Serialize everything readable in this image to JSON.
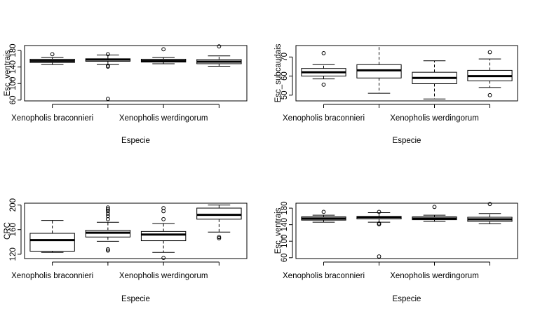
{
  "chart_data": [
    {
      "type": "boxplot",
      "xlabel": "Especie",
      "ylabel": "Esc_ventrais",
      "ylim": [
        58,
        192
      ],
      "yticks": [
        60,
        100,
        140,
        180
      ],
      "xtick_labels": [
        "Xenopholis braconnieri",
        "",
        "Xenopholis werdingorum",
        ""
      ],
      "boxes": [
        {
          "group": 1,
          "whisker_low": 146,
          "q1": 151,
          "median": 155,
          "q3": 159,
          "whisker_high": 163,
          "outliers": [
            171
          ]
        },
        {
          "group": 2,
          "whisker_low": 146,
          "q1": 154,
          "median": 158,
          "q3": 160,
          "whisker_high": 169,
          "outliers": [
            141,
            143,
            171,
            63
          ]
        },
        {
          "group": 3,
          "whisker_low": 148,
          "q1": 152,
          "median": 155,
          "q3": 159,
          "whisker_high": 163,
          "outliers": [
            183
          ]
        },
        {
          "group": 4,
          "whisker_low": 142,
          "q1": 148,
          "median": 153,
          "q3": 158,
          "whisker_high": 167,
          "outliers": [
            190
          ]
        }
      ]
    },
    {
      "type": "boxplot",
      "xlabel": "Especie",
      "ylabel": "Esc_subcaudais",
      "ylim": [
        47,
        76
      ],
      "yticks": [
        50,
        60,
        70
      ],
      "xtick_labels": [
        "Xenopholis braconnieri",
        "",
        "Xenopholis werdingorum",
        ""
      ],
      "boxes": [
        {
          "group": 1,
          "whisker_low": 58.5,
          "q1": 60,
          "median": 62,
          "q3": 64,
          "whisker_high": 66,
          "outliers": [
            72,
            55.5
          ]
        },
        {
          "group": 2,
          "whisker_low": 51,
          "q1": 59,
          "median": 63,
          "q3": 66,
          "whisker_high": 76,
          "outliers": []
        },
        {
          "group": 3,
          "whisker_low": 48,
          "q1": 56,
          "median": 59,
          "q3": 62,
          "whisker_high": 68,
          "outliers": []
        },
        {
          "group": 4,
          "whisker_low": 54,
          "q1": 57.5,
          "median": 60,
          "q3": 63,
          "whisker_high": 69,
          "outliers": [
            72.5,
            50
          ]
        }
      ]
    },
    {
      "type": "boxplot",
      "xlabel": "Especie",
      "ylabel": "CRC",
      "ylim": [
        113,
        203
      ],
      "yticks": [
        120,
        160,
        200
      ],
      "xtick_labels": [
        "Xenopholis braconnieri",
        "",
        "Xenopholis werdingorum",
        ""
      ],
      "boxes": [
        {
          "group": 1,
          "whisker_low": 123,
          "q1": 125,
          "median": 143,
          "q3": 154,
          "whisker_high": 175,
          "outliers": []
        },
        {
          "group": 2,
          "whisker_low": 141,
          "q1": 148,
          "median": 155,
          "q3": 159,
          "whisker_high": 172,
          "outliers": [
            177,
            182,
            186,
            190,
            193,
            196,
            128,
            126
          ]
        },
        {
          "group": 3,
          "whisker_low": 123,
          "q1": 142,
          "median": 152,
          "q3": 157,
          "whisker_high": 170,
          "outliers": [
            177,
            190,
            195,
            114
          ]
        },
        {
          "group": 4,
          "whisker_low": 156,
          "q1": 177,
          "median": 184,
          "q3": 195,
          "whisker_high": 200,
          "outliers": [
            146,
            148
          ]
        }
      ]
    },
    {
      "type": "boxplot",
      "xlabel": "Especie",
      "ylabel": "Esc_ventrais",
      "ylim": [
        58,
        192
      ],
      "yticks": [
        60,
        100,
        140,
        180
      ],
      "xtick_labels": [
        "Xenopholis braconnieri",
        "",
        "Xenopholis werdingorum",
        ""
      ],
      "boxes": [
        {
          "group": 1,
          "whisker_low": 146,
          "q1": 151,
          "median": 155,
          "q3": 159,
          "whisker_high": 163,
          "outliers": [
            171
          ]
        },
        {
          "group": 2,
          "whisker_low": 146,
          "q1": 154,
          "median": 158,
          "q3": 160,
          "whisker_high": 169,
          "outliers": [
            141,
            143,
            171,
            63
          ]
        },
        {
          "group": 3,
          "whisker_low": 148,
          "q1": 152,
          "median": 155,
          "q3": 159,
          "whisker_high": 163,
          "outliers": [
            183
          ]
        },
        {
          "group": 4,
          "whisker_low": 142,
          "q1": 148,
          "median": 153,
          "q3": 158,
          "whisker_high": 167,
          "outliers": [
            190
          ]
        }
      ]
    }
  ]
}
